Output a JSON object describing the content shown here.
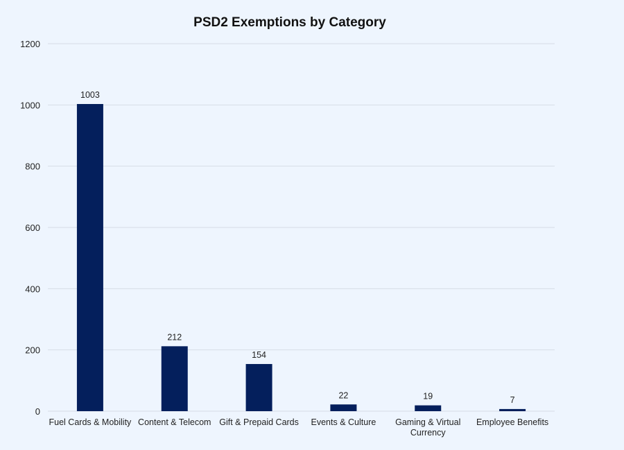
{
  "chart_data": {
    "type": "bar",
    "title": "PSD2 Exemptions by Category",
    "categories": [
      "Fuel Cards & Mobility",
      "Content & Telecom",
      "Gift & Prepaid Cards",
      "Events & Culture",
      "Gaming & Virtual Currency",
      "Employee Benefits"
    ],
    "category_lines": [
      [
        "Fuel Cards & Mobility"
      ],
      [
        "Content & Telecom"
      ],
      [
        "Gift & Prepaid Cards"
      ],
      [
        "Events & Culture"
      ],
      [
        "Gaming & Virtual",
        "Currency"
      ],
      [
        "Employee Benefits"
      ]
    ],
    "values": [
      1003,
      212,
      154,
      22,
      19,
      7
    ],
    "data_labels": [
      "1003",
      "212",
      "154",
      "22",
      "19",
      "7"
    ],
    "xlabel": "",
    "ylabel": "",
    "ylim": [
      0,
      1200
    ],
    "yticks": [
      0,
      200,
      400,
      600,
      800,
      1000,
      1200
    ],
    "grid": true,
    "legend": "none",
    "colors": {
      "bar": "#041f5c",
      "grid": "#d6dce6",
      "background": "#eef5fe"
    }
  }
}
